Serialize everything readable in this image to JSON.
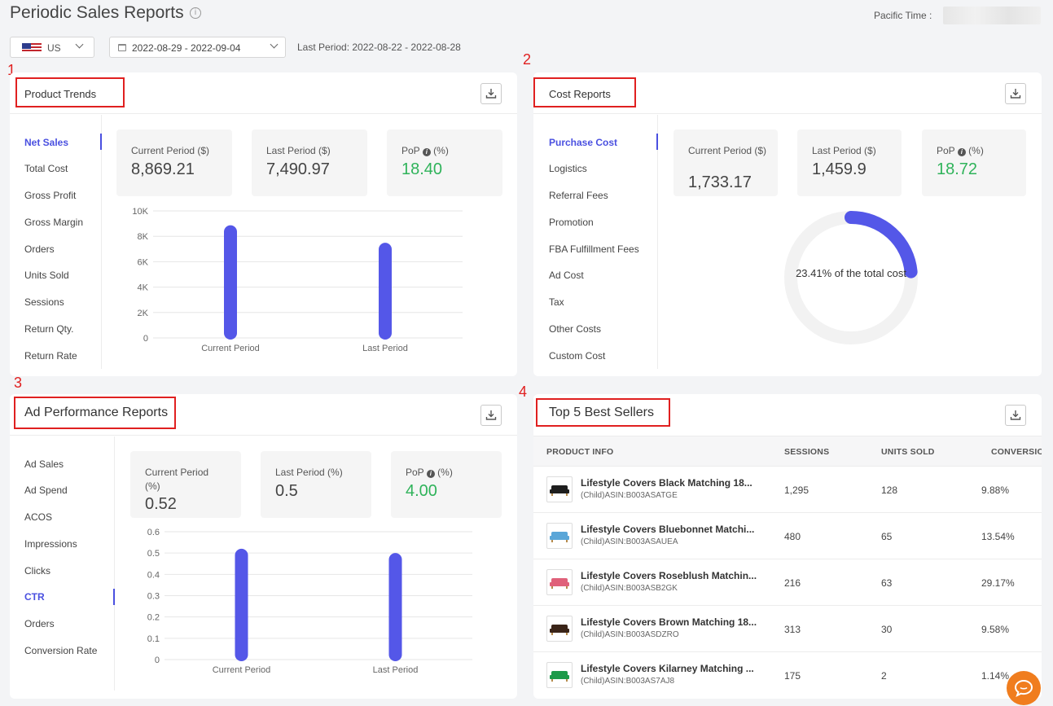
{
  "header": {
    "title": "Periodic Sales Reports",
    "info_icon": "i",
    "pacific_time_label": "Pacific Time :",
    "country": "US",
    "date_range": "2022-08-29 - 2022-09-04",
    "last_period": "Last Period: 2022-08-22 - 2022-08-28"
  },
  "annotations": [
    "1",
    "2",
    "3",
    "4"
  ],
  "product_trends": {
    "title": "Product Trends",
    "menu": [
      "Net Sales",
      "Total Cost",
      "Gross Profit",
      "Gross Margin",
      "Orders",
      "Units Sold",
      "Sessions",
      "Return Qty.",
      "Return Rate"
    ],
    "active_menu": "Net Sales",
    "stats": {
      "current_label": "Current Period ($)",
      "current_value": "8,869.21",
      "last_label": "Last Period ($)",
      "last_value": "7,490.97",
      "pop_label_pre": "PoP",
      "pop_label_post": "(%)",
      "pop_value": "18.40"
    },
    "chart_data": {
      "type": "bar",
      "categories": [
        "Current Period",
        "Last Period"
      ],
      "values": [
        8869.21,
        7490.97
      ],
      "ylim": [
        0,
        10000
      ],
      "yticks": [
        "0",
        "2K",
        "4K",
        "6K",
        "8K",
        "10K"
      ],
      "grid": true,
      "bar_color": "#5457e8"
    }
  },
  "cost_reports": {
    "title": "Cost Reports",
    "menu": [
      "Purchase Cost",
      "Logistics",
      "Referral Fees",
      "Promotion",
      "FBA Fulfillment Fees",
      "Ad Cost",
      "Tax",
      "Other Costs",
      "Custom Cost"
    ],
    "active_menu": "Purchase Cost",
    "stats": {
      "current_label": "Current Period ($)",
      "current_value": "1,733.17",
      "last_label": "Last Period ($)",
      "last_value": "1,459.9",
      "pop_label_pre": "PoP",
      "pop_label_post": "(%)",
      "pop_value": "18.72"
    },
    "donut_label": "23.41% of the total cost",
    "chart_data": {
      "type": "pie",
      "values": [
        23.41,
        76.59
      ],
      "colors": [
        "#5457e8",
        "#f2f2f2"
      ]
    }
  },
  "ad_performance": {
    "title": "Ad Performance Reports",
    "menu": [
      "Ad Sales",
      "Ad Spend",
      "ACOS",
      "Impressions",
      "Clicks",
      "CTR",
      "Orders",
      "Conversion Rate"
    ],
    "active_menu": "CTR",
    "stats": {
      "current_label": "Current Period (%)",
      "current_value": "0.52",
      "last_label": "Last Period (%)",
      "last_value": "0.5",
      "pop_label_pre": "PoP",
      "pop_label_post": "(%)",
      "pop_value": "4.00"
    },
    "chart_data": {
      "type": "bar",
      "categories": [
        "Current Period",
        "Last Period"
      ],
      "values": [
        0.52,
        0.5
      ],
      "ylim": [
        0,
        0.6
      ],
      "yticks": [
        "0",
        "0.1",
        "0.2",
        "0.3",
        "0.4",
        "0.5",
        "0.6"
      ],
      "grid": true,
      "bar_color": "#5457e8"
    }
  },
  "best_sellers": {
    "title": "Top 5 Best Sellers",
    "columns": [
      "PRODUCT INFO",
      "SESSIONS",
      "UNITS SOLD",
      "CONVERSIO"
    ],
    "rows": [
      {
        "name": "Lifestyle Covers Black Matching 18...",
        "asin": "(Child)ASIN:B003ASATGE",
        "sessions": "1,295",
        "units": "128",
        "conversion": "9.88%",
        "color": "#1e1e1e"
      },
      {
        "name": "Lifestyle Covers Bluebonnet Matchi...",
        "asin": "(Child)ASIN:B003ASAUEA",
        "sessions": "480",
        "units": "65",
        "conversion": "13.54%",
        "color": "#5aa6d8"
      },
      {
        "name": "Lifestyle Covers Roseblush Matchin...",
        "asin": "(Child)ASIN:B003ASB2GK",
        "sessions": "216",
        "units": "63",
        "conversion": "29.17%",
        "color": "#e0617a"
      },
      {
        "name": "Lifestyle Covers Brown Matching 18...",
        "asin": "(Child)ASIN:B003ASDZRO",
        "sessions": "313",
        "units": "30",
        "conversion": "9.58%",
        "color": "#3a2418"
      },
      {
        "name": "Lifestyle Covers Kilarney Matching ...",
        "asin": "(Child)ASIN:B003AS7AJ8",
        "sessions": "175",
        "units": "2",
        "conversion": "1.14%",
        "color": "#1e9a4a"
      }
    ]
  },
  "colors": {
    "accent": "#4a50e0",
    "positive": "#2fb35a",
    "annotation": "#e02020",
    "chat": "#f07d1e"
  }
}
